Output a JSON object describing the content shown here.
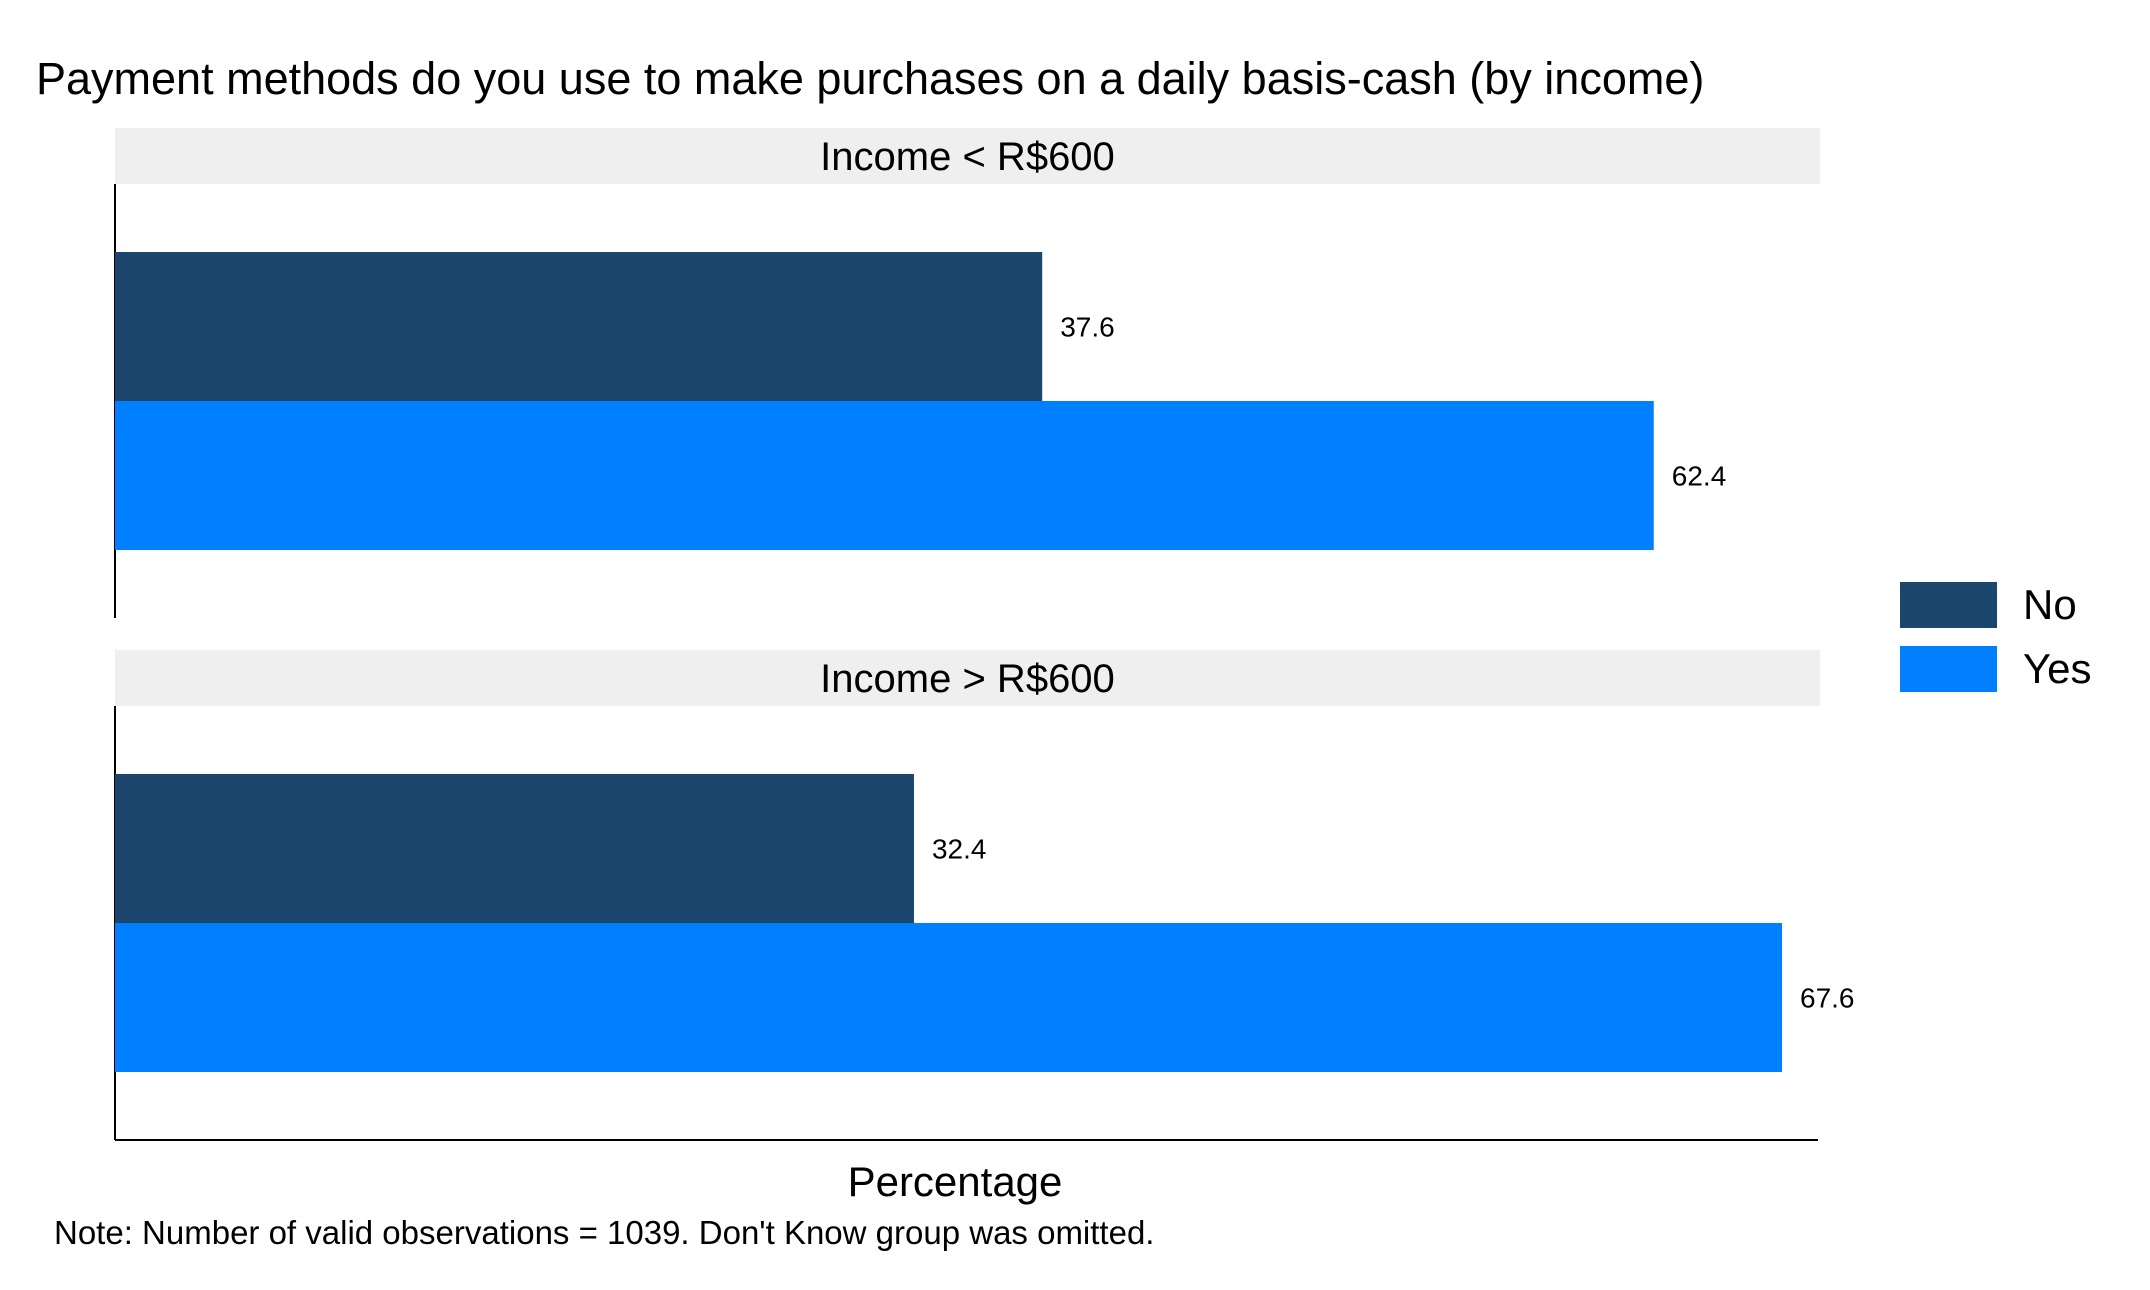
{
  "chart_data": {
    "type": "bar",
    "orientation": "horizontal",
    "title": "Payment methods do you use to make purchases on a daily basis-cash (by income)",
    "xlabel": "Percentage",
    "ylabel": "",
    "note": "Note: Number of valid observations = 1039. Don't Know group was omitted.",
    "xlim": [
      0,
      67.6
    ],
    "grid": false,
    "legend_position": "right",
    "series_names": [
      "No",
      "Yes"
    ],
    "colors": {
      "No": "#1c466e",
      "Yes": "#0080ff",
      "strip_bg": "#efefef"
    },
    "panels": [
      {
        "label": "Income < R$600",
        "values": [
          37.6,
          62.4
        ],
        "value_labels": [
          "37.6",
          "62.4"
        ]
      },
      {
        "label": "Income > R$600",
        "values": [
          32.4,
          67.6
        ],
        "value_labels": [
          "32.4",
          "67.6"
        ]
      }
    ]
  }
}
